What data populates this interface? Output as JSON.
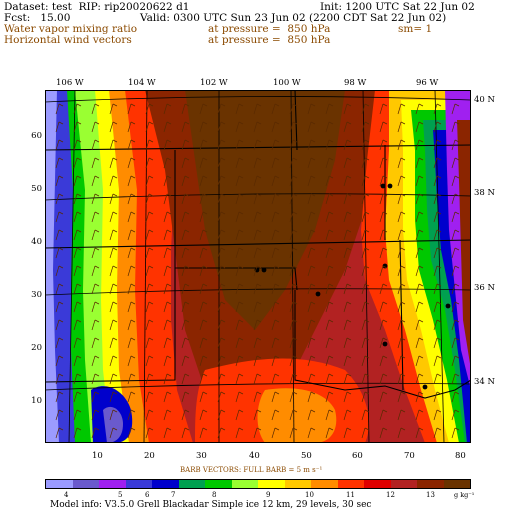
{
  "header": {
    "dataset": "Dataset: test  RIP: rip20020622 d1",
    "init": "Init: 1200 UTC Sat 22 Jun 02",
    "fcst": "Fcst:   15.00",
    "valid": "Valid: 0300 UTC Sun 23 Jun 02 (2200 CDT Sat 22 Jun 02)",
    "field1": "Water vapor mixing ratio",
    "field1_level": "at pressure =  850 hPa",
    "field1_sm": "sm= 1",
    "field2": "Horizontal wind vectors",
    "field2_level": "at pressure =  850 hPa"
  },
  "map": {
    "top_lon_labels": [
      "106 W",
      "104 W",
      "102 W",
      "100 W",
      "98 W",
      "96 W"
    ],
    "right_lat_labels": [
      "40 N",
      "38 N",
      "36 N",
      "34 N"
    ],
    "left_grid_labels": [
      "60",
      "50",
      "40",
      "30",
      "20",
      "10"
    ],
    "bottom_grid_labels": [
      "10",
      "20",
      "30",
      "40",
      "50",
      "60",
      "70",
      "80"
    ],
    "colors": {
      "c3": "#9b9bff",
      "c4": "#6a5acd",
      "c5": "#a020f0",
      "c6": "#3a3ad8",
      "c7": "#0000cc",
      "c8": "#00a050",
      "c9": "#00c800",
      "c10": "#9aff32",
      "c11": "#ffff00",
      "c12": "#ffc800",
      "c13": "#ff8c00",
      "c14": "#ff3300",
      "c15": "#e00000",
      "c16": "#b22222",
      "c17": "#8b2500",
      "c18": "#6a3300"
    }
  },
  "barb_vectors_label": "BARB VECTORS:  FULL BARB = 5 m s⁻¹",
  "colorbar": {
    "colors": [
      "#9b9bff",
      "#6a5acd",
      "#a020f0",
      "#3a3ad8",
      "#0000cc",
      "#00a050",
      "#00c800",
      "#9aff32",
      "#ffff00",
      "#ffc800",
      "#ff8c00",
      "#ff3300",
      "#e00000",
      "#b22222",
      "#8b2500",
      "#6a3300"
    ],
    "labels": [
      "4",
      "5",
      "6",
      "7",
      "8",
      "9",
      "10",
      "11",
      "12",
      "13"
    ],
    "units": "g kg⁻¹"
  },
  "footer": "Model info: V3.5.0  Grell     Blackadar  Simple ice   12 km,  29 levels,   30 sec"
}
